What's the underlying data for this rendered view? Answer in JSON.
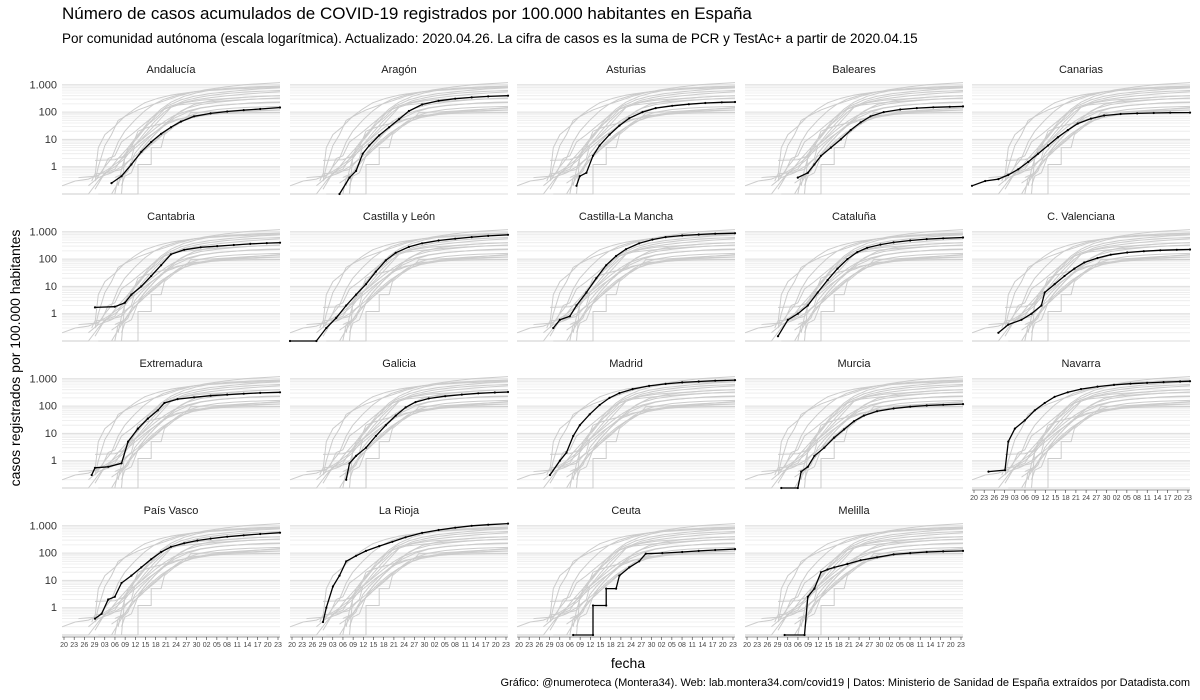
{
  "title": "Número de casos acumulados de COVID-19 registrados por 100.000 habitantes en España",
  "subtitle": "Por comunidad autónoma (escala logarítmica). Actualizado: 2020.04.26. La cifra de casos es la suma de PCR y TestAc+ a partir de 2020.04.15",
  "caption": "Gráfico: @numeroteca (Montera34). Web: lab.montera34.com/covid19 | Datos: Ministerio de Sanidad de España extraídos por Datadista.com",
  "colors": {
    "highlight": "#000000",
    "context": "#cccccc",
    "panel_bg": "#ebebeb"
  },
  "chart_data": {
    "type": "line",
    "layout": "small-multiples",
    "xlabel": "fecha",
    "ylabel": "casos registrados por 100.000 habitantes",
    "y_scale": "log",
    "ylim": [
      0.1,
      1500
    ],
    "y_ticks": [
      1,
      10,
      100,
      1000
    ],
    "y_tick_labels": [
      "1",
      "10",
      "100",
      "1.000"
    ],
    "x_range": [
      "2020-02-20",
      "2020-04-26"
    ],
    "x_tick_labels": [
      "20",
      "23",
      "26",
      "29",
      "03",
      "06",
      "09",
      "12",
      "15",
      "18",
      "21",
      "24",
      "27",
      "30",
      "02",
      "05",
      "08",
      "11",
      "14",
      "17",
      "20",
      "23"
    ],
    "grid": true,
    "series": [
      {
        "name": "Andalucía",
        "values": [
          [
            15,
            0.25
          ],
          [
            18,
            0.45
          ],
          [
            21,
            1.2
          ],
          [
            24,
            3.5
          ],
          [
            27,
            8
          ],
          [
            30,
            16
          ],
          [
            33,
            28
          ],
          [
            36,
            45
          ],
          [
            40,
            70
          ],
          [
            45,
            90
          ],
          [
            50,
            105
          ],
          [
            55,
            118
          ],
          [
            60,
            130
          ],
          [
            66,
            148
          ]
        ]
      },
      {
        "name": "Aragón",
        "values": [
          [
            15,
            0.08
          ],
          [
            18,
            0.4
          ],
          [
            20,
            0.7
          ],
          [
            22,
            3
          ],
          [
            24,
            6
          ],
          [
            27,
            14
          ],
          [
            30,
            28
          ],
          [
            33,
            55
          ],
          [
            36,
            110
          ],
          [
            40,
            190
          ],
          [
            45,
            260
          ],
          [
            50,
            310
          ],
          [
            55,
            345
          ],
          [
            60,
            375
          ],
          [
            66,
            400
          ]
        ]
      },
      {
        "name": "Asturias",
        "values": [
          [
            18,
            0.2
          ],
          [
            19,
            0.45
          ],
          [
            21,
            0.6
          ],
          [
            23,
            2.5
          ],
          [
            25,
            6
          ],
          [
            28,
            15
          ],
          [
            31,
            32
          ],
          [
            34,
            60
          ],
          [
            38,
            100
          ],
          [
            42,
            140
          ],
          [
            47,
            170
          ],
          [
            52,
            195
          ],
          [
            57,
            215
          ],
          [
            62,
            228
          ],
          [
            66,
            235
          ]
        ]
      },
      {
        "name": "Baleares",
        "values": [
          [
            16,
            0.4
          ],
          [
            19,
            0.6
          ],
          [
            21,
            1.2
          ],
          [
            23,
            2.5
          ],
          [
            26,
            5
          ],
          [
            29,
            10
          ],
          [
            32,
            22
          ],
          [
            35,
            42
          ],
          [
            38,
            70
          ],
          [
            42,
            100
          ],
          [
            47,
            125
          ],
          [
            52,
            140
          ],
          [
            57,
            150
          ],
          [
            62,
            157
          ],
          [
            66,
            162
          ]
        ]
      },
      {
        "name": "Canarias",
        "values": [
          [
            0,
            0.2
          ],
          [
            4,
            0.3
          ],
          [
            8,
            0.35
          ],
          [
            11,
            0.5
          ],
          [
            14,
            0.8
          ],
          [
            17,
            1.5
          ],
          [
            20,
            3
          ],
          [
            23,
            6
          ],
          [
            26,
            12
          ],
          [
            29,
            22
          ],
          [
            32,
            38
          ],
          [
            36,
            58
          ],
          [
            40,
            75
          ],
          [
            45,
            85
          ],
          [
            50,
            90
          ],
          [
            55,
            93
          ],
          [
            60,
            95
          ],
          [
            66,
            96
          ]
        ]
      },
      {
        "name": "Cantabria",
        "values": [
          [
            10,
            1.7
          ],
          [
            16,
            1.8
          ],
          [
            19,
            2.5
          ],
          [
            21,
            5
          ],
          [
            24,
            10
          ],
          [
            27,
            24
          ],
          [
            30,
            60
          ],
          [
            33,
            150
          ],
          [
            37,
            220
          ],
          [
            42,
            270
          ],
          [
            47,
            300
          ],
          [
            52,
            330
          ],
          [
            57,
            360
          ],
          [
            62,
            385
          ],
          [
            66,
            400
          ]
        ]
      },
      {
        "name": "Castilla y León",
        "values": [
          [
            0,
            0.1
          ],
          [
            8,
            0.1
          ],
          [
            11,
            0.3
          ],
          [
            14,
            0.7
          ],
          [
            17,
            2
          ],
          [
            20,
            5
          ],
          [
            23,
            12
          ],
          [
            26,
            35
          ],
          [
            29,
            90
          ],
          [
            32,
            170
          ],
          [
            36,
            280
          ],
          [
            40,
            380
          ],
          [
            45,
            480
          ],
          [
            50,
            560
          ],
          [
            55,
            640
          ],
          [
            60,
            710
          ],
          [
            66,
            780
          ]
        ]
      },
      {
        "name": "Castilla-La Mancha",
        "values": [
          [
            11,
            0.3
          ],
          [
            13,
            0.6
          ],
          [
            16,
            0.8
          ],
          [
            18,
            2
          ],
          [
            21,
            6
          ],
          [
            24,
            20
          ],
          [
            27,
            60
          ],
          [
            30,
            130
          ],
          [
            33,
            230
          ],
          [
            37,
            380
          ],
          [
            41,
            520
          ],
          [
            45,
            640
          ],
          [
            50,
            730
          ],
          [
            55,
            800
          ],
          [
            60,
            850
          ],
          [
            66,
            890
          ]
        ]
      },
      {
        "name": "Cataluña",
        "values": [
          [
            10,
            0.15
          ],
          [
            13,
            0.6
          ],
          [
            16,
            1
          ],
          [
            19,
            2
          ],
          [
            22,
            6
          ],
          [
            25,
            17
          ],
          [
            28,
            45
          ],
          [
            31,
            100
          ],
          [
            34,
            180
          ],
          [
            37,
            260
          ],
          [
            41,
            340
          ],
          [
            45,
            410
          ],
          [
            50,
            480
          ],
          [
            55,
            540
          ],
          [
            60,
            580
          ],
          [
            66,
            620
          ]
        ]
      },
      {
        "name": "C. Valenciana",
        "values": [
          [
            8,
            0.2
          ],
          [
            11,
            0.4
          ],
          [
            15,
            0.6
          ],
          [
            18,
            1
          ],
          [
            21,
            2
          ],
          [
            22,
            6
          ],
          [
            25,
            12
          ],
          [
            28,
            24
          ],
          [
            31,
            45
          ],
          [
            34,
            75
          ],
          [
            38,
            110
          ],
          [
            42,
            145
          ],
          [
            47,
            175
          ],
          [
            52,
            195
          ],
          [
            57,
            210
          ],
          [
            62,
            220
          ],
          [
            66,
            225
          ]
        ]
      },
      {
        "name": "Extremadura",
        "values": [
          [
            9,
            0.3
          ],
          [
            10,
            0.55
          ],
          [
            14,
            0.6
          ],
          [
            18,
            0.8
          ],
          [
            20,
            5
          ],
          [
            23,
            15
          ],
          [
            26,
            35
          ],
          [
            29,
            70
          ],
          [
            31,
            130
          ],
          [
            35,
            180
          ],
          [
            40,
            210
          ],
          [
            45,
            240
          ],
          [
            50,
            265
          ],
          [
            55,
            285
          ],
          [
            60,
            305
          ],
          [
            66,
            320
          ]
        ]
      },
      {
        "name": "Galicia",
        "values": [
          [
            17,
            0.2
          ],
          [
            18,
            0.8
          ],
          [
            20,
            1.5
          ],
          [
            23,
            3
          ],
          [
            26,
            8
          ],
          [
            29,
            20
          ],
          [
            32,
            45
          ],
          [
            35,
            90
          ],
          [
            38,
            140
          ],
          [
            42,
            190
          ],
          [
            47,
            230
          ],
          [
            52,
            265
          ],
          [
            57,
            295
          ],
          [
            62,
            315
          ],
          [
            66,
            330
          ]
        ]
      },
      {
        "name": "Madrid",
        "values": [
          [
            10,
            0.3
          ],
          [
            13,
            1
          ],
          [
            15,
            2
          ],
          [
            17,
            8
          ],
          [
            19,
            20
          ],
          [
            22,
            50
          ],
          [
            25,
            110
          ],
          [
            28,
            200
          ],
          [
            31,
            300
          ],
          [
            35,
            420
          ],
          [
            40,
            550
          ],
          [
            45,
            650
          ],
          [
            50,
            740
          ],
          [
            55,
            800
          ],
          [
            60,
            850
          ],
          [
            66,
            900
          ]
        ]
      },
      {
        "name": "Murcia",
        "values": [
          [
            11,
            0.1
          ],
          [
            16,
            0.1
          ],
          [
            17,
            0.4
          ],
          [
            19,
            0.6
          ],
          [
            21,
            1.5
          ],
          [
            24,
            3
          ],
          [
            27,
            7
          ],
          [
            30,
            14
          ],
          [
            33,
            28
          ],
          [
            36,
            45
          ],
          [
            40,
            65
          ],
          [
            45,
            82
          ],
          [
            50,
            95
          ],
          [
            55,
            105
          ],
          [
            60,
            112
          ],
          [
            66,
            118
          ]
        ]
      },
      {
        "name": "Navarra",
        "values": [
          [
            5,
            0.4
          ],
          [
            10,
            0.45
          ],
          [
            11,
            5
          ],
          [
            13,
            15
          ],
          [
            16,
            30
          ],
          [
            19,
            70
          ],
          [
            22,
            130
          ],
          [
            25,
            220
          ],
          [
            29,
            320
          ],
          [
            33,
            420
          ],
          [
            38,
            520
          ],
          [
            43,
            600
          ],
          [
            48,
            660
          ],
          [
            53,
            710
          ],
          [
            58,
            760
          ],
          [
            63,
            800
          ],
          [
            66,
            820
          ]
        ]
      },
      {
        "name": "País Vasco",
        "values": [
          [
            10,
            0.4
          ],
          [
            12,
            0.6
          ],
          [
            14,
            2
          ],
          [
            16,
            2.5
          ],
          [
            18,
            8
          ],
          [
            21,
            15
          ],
          [
            24,
            30
          ],
          [
            27,
            60
          ],
          [
            30,
            110
          ],
          [
            33,
            170
          ],
          [
            37,
            230
          ],
          [
            41,
            290
          ],
          [
            45,
            340
          ],
          [
            50,
            400
          ],
          [
            55,
            450
          ],
          [
            60,
            500
          ],
          [
            66,
            560
          ]
        ]
      },
      {
        "name": "La Rioja",
        "values": [
          [
            10,
            0.3
          ],
          [
            11,
            1
          ],
          [
            13,
            6
          ],
          [
            15,
            15
          ],
          [
            17,
            50
          ],
          [
            20,
            80
          ],
          [
            23,
            120
          ],
          [
            27,
            180
          ],
          [
            31,
            260
          ],
          [
            35,
            380
          ],
          [
            40,
            550
          ],
          [
            45,
            700
          ],
          [
            50,
            850
          ],
          [
            55,
            1000
          ],
          [
            60,
            1100
          ],
          [
            66,
            1200
          ]
        ]
      },
      {
        "name": "Ceuta",
        "values": [
          [
            17,
            0.1
          ],
          [
            23,
            0.1
          ],
          [
            23,
            1.2
          ],
          [
            27,
            1.2
          ],
          [
            27,
            5
          ],
          [
            30,
            5
          ],
          [
            31,
            15
          ],
          [
            34,
            30
          ],
          [
            37,
            50
          ],
          [
            39,
            95
          ],
          [
            44,
            100
          ],
          [
            50,
            110
          ],
          [
            55,
            120
          ],
          [
            60,
            130
          ],
          [
            66,
            140
          ]
        ]
      },
      {
        "name": "Melilla",
        "values": [
          [
            12,
            0.1
          ],
          [
            18,
            0.1
          ],
          [
            19,
            2.5
          ],
          [
            21,
            5
          ],
          [
            23,
            20
          ],
          [
            25,
            25
          ],
          [
            27,
            30
          ],
          [
            31,
            40
          ],
          [
            35,
            55
          ],
          [
            40,
            70
          ],
          [
            45,
            90
          ],
          [
            50,
            100
          ],
          [
            55,
            110
          ],
          [
            60,
            115
          ],
          [
            66,
            120
          ]
        ]
      }
    ]
  }
}
